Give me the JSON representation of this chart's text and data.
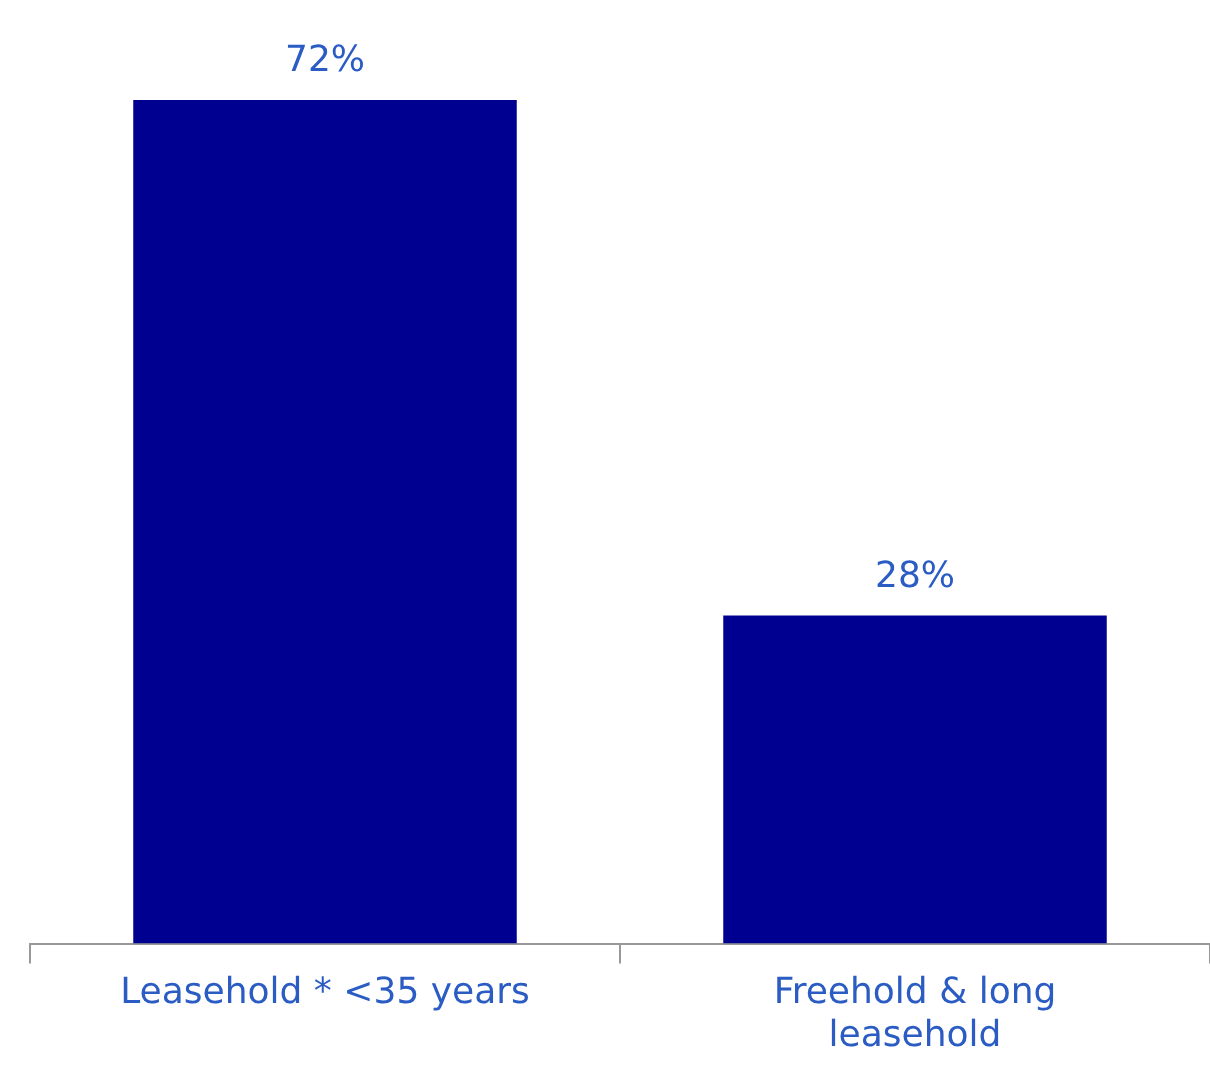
{
  "chart_data": {
    "type": "bar",
    "categories": [
      "Leasehold * <35 years",
      "Freehold & long leasehold"
    ],
    "values": [
      72,
      28
    ],
    "value_labels": [
      "72%",
      "28%"
    ],
    "color": "#000090",
    "tick_labels": "x",
    "grid": false,
    "legend": false
  }
}
